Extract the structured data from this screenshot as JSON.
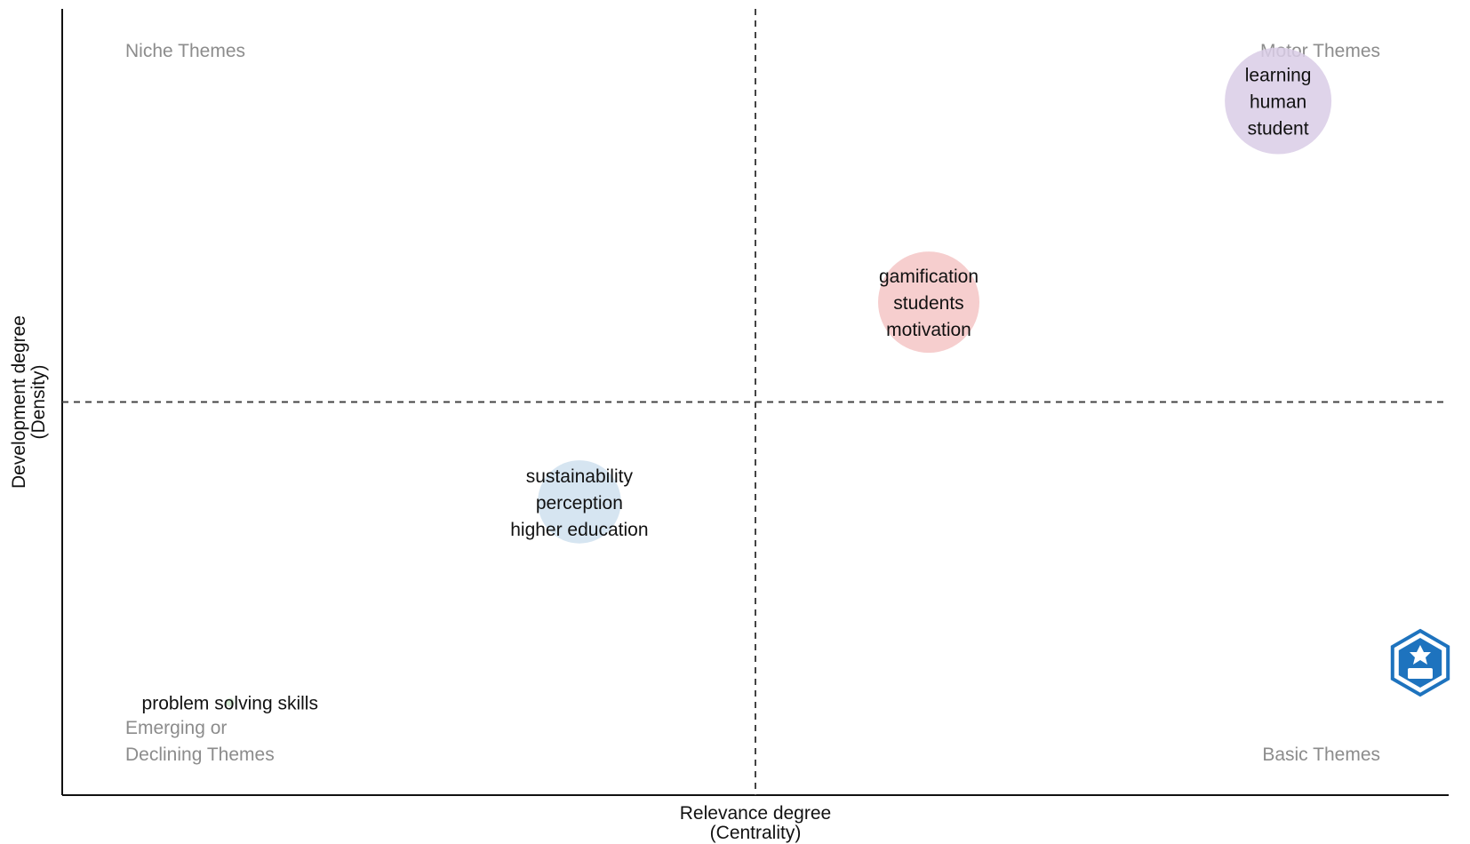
{
  "chart_data": {
    "type": "scatter",
    "title": "",
    "xlabel": [
      "Relevance degree",
      "(Centrality)"
    ],
    "ylabel": [
      "Development degree",
      "(Density)"
    ],
    "grid": false,
    "quadrant_labels": {
      "top_left": [
        "Niche Themes"
      ],
      "top_right": [
        "Motor Themes"
      ],
      "bottom_left": [
        "Emerging or",
        "Declining Themes"
      ],
      "bottom_right": [
        "Basic Themes"
      ]
    },
    "clusters": [
      {
        "x": 0.877,
        "y": 0.883,
        "size": 1.0,
        "color": "#d9cce6",
        "labels": [
          "learning",
          "human",
          "student"
        ]
      },
      {
        "x": 0.625,
        "y": 0.627,
        "size": 0.95,
        "color": "#f4c6c6",
        "labels": [
          "gamification",
          "students",
          "motivation"
        ]
      },
      {
        "x": 0.373,
        "y": 0.373,
        "size": 0.78,
        "color": "#cfe0ef",
        "labels": [
          "sustainability",
          "perception",
          "higher education"
        ]
      },
      {
        "x": 0.121,
        "y": 0.118,
        "size": 0.08,
        "color": "#cfe8cf",
        "labels": [
          "problem solving skills"
        ]
      }
    ],
    "logo": {
      "icon": "hexagon-logo-icon",
      "color": "#1e73be"
    }
  }
}
